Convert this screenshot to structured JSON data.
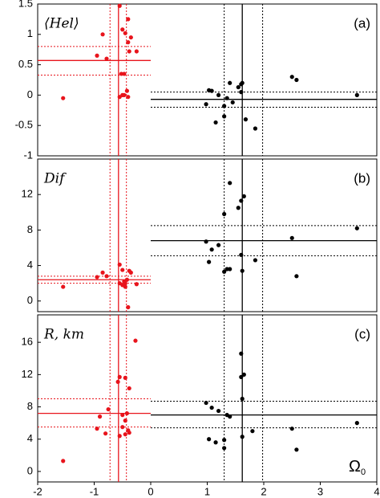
{
  "chart_data": [
    {
      "type": "scatter",
      "label": "⟨Hel⟩",
      "panel": "(a)",
      "xlim": [
        -2,
        4
      ],
      "ylim": [
        -1,
        1.5
      ],
      "yticks": [
        1.5,
        1,
        0.5,
        0,
        -0.5,
        -1
      ],
      "series": [
        {
          "color": "#e8141c",
          "x": [
            -1.55,
            -0.95,
            -0.85,
            -0.78,
            -0.55,
            -0.5,
            -0.45,
            -0.4,
            -0.35,
            -0.4,
            -0.38,
            -0.25,
            -0.52,
            -0.47,
            -0.55,
            -0.5,
            -0.42,
            -0.4,
            -0.47
          ],
          "values": [
            -0.05,
            0.65,
            1.0,
            0.6,
            1.47,
            1.08,
            1.02,
            1.25,
            0.95,
            0.87,
            0.72,
            0.72,
            0.35,
            0.35,
            -0.03,
            0.0,
            0.07,
            -0.03,
            0.0
          ]
        },
        {
          "color": "#000000",
          "x": [
            0.98,
            1.03,
            1.08,
            1.15,
            1.2,
            1.3,
            1.35,
            1.4,
            1.45,
            1.55,
            1.6,
            1.62,
            1.6,
            1.68,
            1.85,
            2.5,
            2.58,
            3.65,
            1.3
          ],
          "values": [
            -0.15,
            0.08,
            0.07,
            -0.45,
            0.0,
            -0.18,
            -0.05,
            0.2,
            -0.12,
            0.13,
            0.18,
            0.2,
            0.05,
            -0.4,
            -0.55,
            0.3,
            0.25,
            0.0,
            -0.35
          ]
        }
      ],
      "vlines": [
        {
          "value": -0.57,
          "color": "#e8141c",
          "style": "solid"
        },
        {
          "value": -0.72,
          "color": "#e8141c",
          "style": "dotted"
        },
        {
          "value": -0.43,
          "color": "#e8141c",
          "style": "dotted"
        },
        {
          "value": 1.62,
          "color": "#000000",
          "style": "solid"
        },
        {
          "value": 1.3,
          "color": "#000000",
          "style": "dotted"
        },
        {
          "value": 1.98,
          "color": "#000000",
          "style": "dotted"
        }
      ],
      "hlines": [
        {
          "value": 0.57,
          "span": [
            -2,
            0
          ],
          "color": "#e8141c",
          "style": "solid"
        },
        {
          "value": 0.8,
          "span": [
            -2,
            0
          ],
          "color": "#e8141c",
          "style": "dotted"
        },
        {
          "value": 0.33,
          "span": [
            -2,
            0
          ],
          "color": "#e8141c",
          "style": "dotted"
        },
        {
          "value": -0.07,
          "span": [
            0,
            4
          ],
          "color": "#000000",
          "style": "solid"
        },
        {
          "value": 0.05,
          "span": [
            0,
            4
          ],
          "color": "#000000",
          "style": "dotted"
        },
        {
          "value": -0.2,
          "span": [
            0,
            4
          ],
          "color": "#000000",
          "style": "dotted"
        }
      ]
    },
    {
      "type": "scatter",
      "label": "Dif",
      "panel": "(b)",
      "xlim": [
        -2,
        4
      ],
      "ylim": [
        -1.2,
        16
      ],
      "yticks": [
        0,
        4,
        8,
        12
      ],
      "series": [
        {
          "color": "#e8141c",
          "x": [
            -1.55,
            -0.95,
            -0.85,
            -0.78,
            -0.55,
            -0.5,
            -0.45,
            -0.5,
            -0.47,
            -0.42,
            -0.38,
            -0.35,
            -0.4,
            -0.25,
            -0.55,
            -0.45
          ],
          "values": [
            1.6,
            2.7,
            3.2,
            2.8,
            4.1,
            3.5,
            2.0,
            1.8,
            2.2,
            2.4,
            3.4,
            3.2,
            -0.7,
            1.9,
            2.0,
            1.6
          ]
        },
        {
          "color": "#000000",
          "x": [
            0.98,
            1.03,
            1.08,
            1.2,
            1.3,
            1.3,
            1.35,
            1.4,
            1.4,
            1.55,
            1.6,
            1.6,
            1.65,
            1.62,
            1.85,
            2.5,
            2.58,
            3.65
          ],
          "values": [
            6.7,
            4.4,
            5.8,
            6.3,
            9.8,
            3.3,
            3.6,
            13.3,
            3.6,
            10.5,
            11.3,
            5.2,
            11.8,
            3.4,
            4.6,
            7.1,
            2.8,
            8.2
          ]
        }
      ],
      "vlines": [
        {
          "value": -0.57,
          "color": "#e8141c",
          "style": "solid"
        },
        {
          "value": -0.72,
          "color": "#e8141c",
          "style": "dotted"
        },
        {
          "value": -0.43,
          "color": "#e8141c",
          "style": "dotted"
        },
        {
          "value": 1.62,
          "color": "#000000",
          "style": "solid"
        },
        {
          "value": 1.3,
          "color": "#000000",
          "style": "dotted"
        },
        {
          "value": 1.98,
          "color": "#000000",
          "style": "dotted"
        }
      ],
      "hlines": [
        {
          "value": 2.4,
          "span": [
            -2,
            0
          ],
          "color": "#e8141c",
          "style": "solid"
        },
        {
          "value": 2.8,
          "span": [
            -2,
            0
          ],
          "color": "#e8141c",
          "style": "dotted"
        },
        {
          "value": 2.0,
          "span": [
            -2,
            0
          ],
          "color": "#e8141c",
          "style": "dotted"
        },
        {
          "value": 6.8,
          "span": [
            0,
            4
          ],
          "color": "#000000",
          "style": "solid"
        },
        {
          "value": 8.5,
          "span": [
            0,
            4
          ],
          "color": "#000000",
          "style": "dotted"
        },
        {
          "value": 5.1,
          "span": [
            0,
            4
          ],
          "color": "#000000",
          "style": "dotted"
        }
      ]
    },
    {
      "type": "scatter",
      "label": "R, km",
      "panel": "(c)",
      "x_label": {
        "symbol": "Ω",
        "subscript": "0"
      },
      "xlim": [
        -2,
        4
      ],
      "xticks": [
        -2,
        -1,
        0,
        1,
        2,
        3,
        4
      ],
      "ylim": [
        -1.3,
        19.4
      ],
      "yticks": [
        0,
        4,
        8,
        12,
        16
      ],
      "series": [
        {
          "color": "#e8141c",
          "x": [
            -1.55,
            -0.95,
            -0.9,
            -0.8,
            -0.75,
            -0.55,
            -0.58,
            -0.5,
            -0.45,
            -0.42,
            -0.45,
            -0.4,
            -0.38,
            -0.55,
            -0.45,
            -0.27,
            -0.38,
            -0.5
          ],
          "values": [
            1.3,
            5.3,
            6.8,
            4.7,
            7.7,
            11.7,
            11.1,
            7.0,
            11.6,
            7.2,
            6.3,
            5.1,
            4.8,
            4.4,
            4.6,
            16.2,
            10.3,
            5.5
          ]
        },
        {
          "color": "#000000",
          "x": [
            0.98,
            1.03,
            1.08,
            1.15,
            1.2,
            1.3,
            1.3,
            1.35,
            1.4,
            1.6,
            1.6,
            1.65,
            1.62,
            1.62,
            1.8,
            2.5,
            2.58,
            3.65
          ],
          "values": [
            8.5,
            4.0,
            7.9,
            3.6,
            7.5,
            3.9,
            2.9,
            7.0,
            6.8,
            14.6,
            11.7,
            12.0,
            9.0,
            4.3,
            5.0,
            5.3,
            2.7,
            6.0
          ]
        }
      ],
      "vlines": [
        {
          "value": -0.57,
          "color": "#e8141c",
          "style": "solid"
        },
        {
          "value": -0.72,
          "color": "#e8141c",
          "style": "dotted"
        },
        {
          "value": -0.43,
          "color": "#e8141c",
          "style": "dotted"
        },
        {
          "value": 1.62,
          "color": "#000000",
          "style": "solid"
        },
        {
          "value": 1.3,
          "color": "#000000",
          "style": "dotted"
        },
        {
          "value": 1.98,
          "color": "#000000",
          "style": "dotted"
        }
      ],
      "hlines": [
        {
          "value": 7.2,
          "span": [
            -2,
            0
          ],
          "color": "#e8141c",
          "style": "solid"
        },
        {
          "value": 9.0,
          "span": [
            -2,
            0
          ],
          "color": "#e8141c",
          "style": "dotted"
        },
        {
          "value": 5.5,
          "span": [
            -2,
            0
          ],
          "color": "#e8141c",
          "style": "dotted"
        },
        {
          "value": 7.0,
          "span": [
            0,
            4
          ],
          "color": "#000000",
          "style": "solid"
        },
        {
          "value": 8.7,
          "span": [
            0,
            4
          ],
          "color": "#000000",
          "style": "dotted"
        },
        {
          "value": 5.4,
          "span": [
            0,
            4
          ],
          "color": "#000000",
          "style": "dotted"
        }
      ]
    }
  ]
}
